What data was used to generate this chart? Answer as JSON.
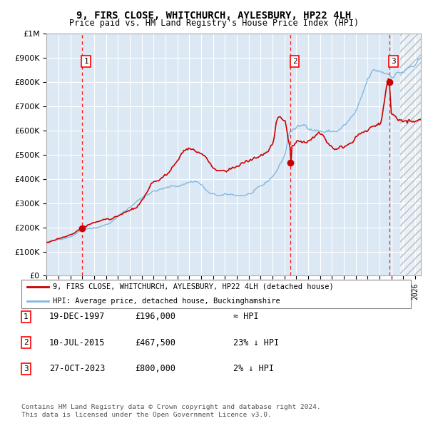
{
  "title": "9, FIRS CLOSE, WHITCHURCH, AYLESBURY, HP22 4LH",
  "subtitle": "Price paid vs. HM Land Registry's House Price Index (HPI)",
  "bg_color": "#dce9f5",
  "hpi_color": "#7fb8e0",
  "price_color": "#cc0000",
  "ylim": [
    0,
    1000000
  ],
  "xlim_start": 1995.0,
  "xlim_end": 2026.5,
  "sale_dates": [
    1997.96,
    2015.52,
    2023.82
  ],
  "sale_prices": [
    196000,
    467500,
    800000
  ],
  "sale_labels": [
    "1",
    "2",
    "3"
  ],
  "sale_info": [
    {
      "label": "1",
      "date": "19-DEC-1997",
      "price": "£196,000",
      "hpi": "≈ HPI"
    },
    {
      "label": "2",
      "date": "10-JUL-2015",
      "price": "£467,500",
      "hpi": "23% ↓ HPI"
    },
    {
      "label": "3",
      "date": "27-OCT-2023",
      "price": "£800,000",
      "hpi": "2% ↓ HPI"
    }
  ],
  "legend_line1": "9, FIRS CLOSE, WHITCHURCH, AYLESBURY, HP22 4LH (detached house)",
  "legend_line2": "HPI: Average price, detached house, Buckinghamshire",
  "footer1": "Contains HM Land Registry data © Crown copyright and database right 2024.",
  "footer2": "This data is licensed under the Open Government Licence v3.0.",
  "grid_color": "#ffffff",
  "border_color": "#aaaaaa",
  "hatch_start": 2024.75
}
